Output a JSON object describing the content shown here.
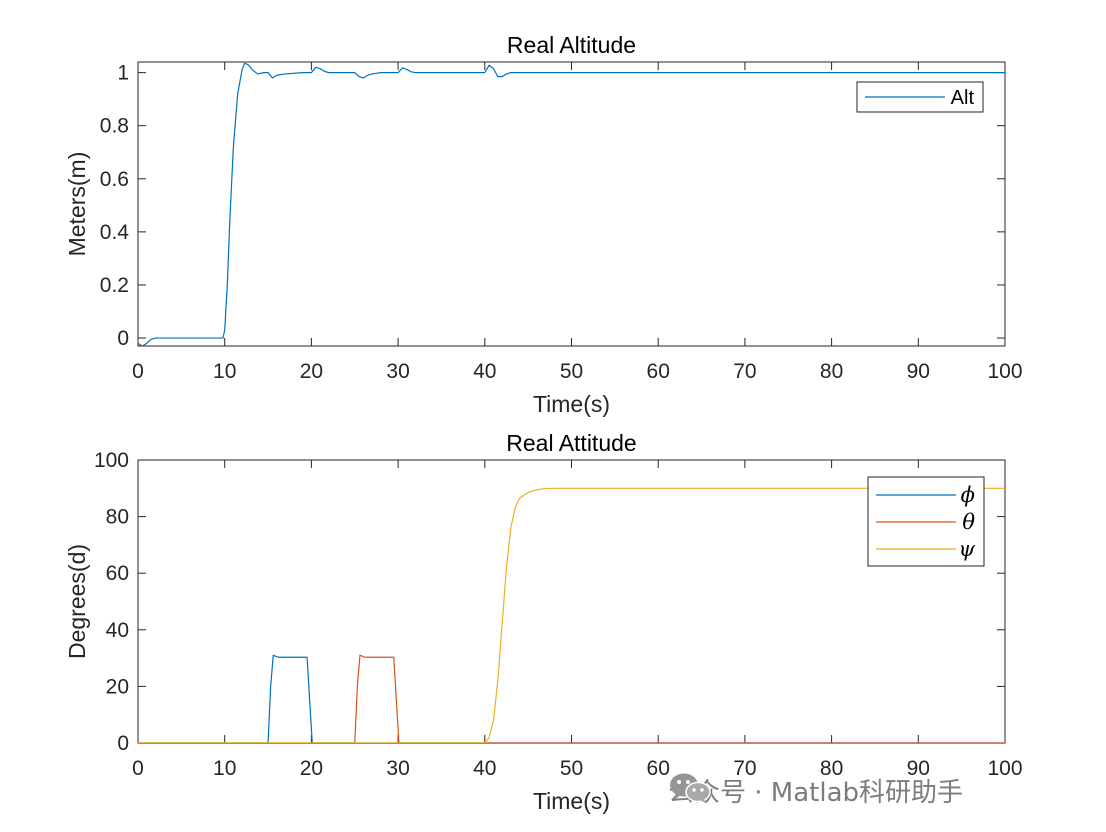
{
  "chart_data": [
    {
      "type": "line",
      "title": "Real Altitude",
      "xlabel": "Time(s)",
      "ylabel": "Meters(m)",
      "xlim": [
        0,
        100
      ],
      "ylim": [
        -0.03,
        1.04
      ],
      "xticks": [
        0,
        10,
        20,
        30,
        40,
        50,
        60,
        70,
        80,
        90,
        100
      ],
      "yticks": [
        0,
        0.2,
        0.4,
        0.6,
        0.8,
        1
      ],
      "ytick_labels": [
        "0",
        "0.2",
        "0.4",
        "0.6",
        "0.8",
        "1"
      ],
      "legend_position": "top-right",
      "grid": false,
      "series": [
        {
          "name": "Alt",
          "color": "#0072BD",
          "x": [
            0,
            0.5,
            1,
            1.5,
            2,
            3,
            5,
            8,
            9.8,
            10,
            10.3,
            10.6,
            11,
            11.5,
            12,
            12.3,
            12.7,
            13.2,
            13.8,
            14.5,
            15,
            15.5,
            16,
            17,
            19,
            20,
            20.5,
            21,
            21.5,
            22,
            23,
            24,
            25,
            25.5,
            26,
            26.5,
            27,
            28,
            29,
            30,
            30.5,
            31,
            31.5,
            32,
            33,
            35,
            38,
            40,
            40.5,
            41,
            41.5,
            42,
            42.5,
            43,
            44,
            46,
            50,
            60,
            70,
            80,
            90,
            100
          ],
          "y": [
            -0.02,
            -0.03,
            -0.02,
            -0.005,
            0,
            0,
            0,
            0,
            0,
            0.03,
            0.2,
            0.45,
            0.72,
            0.92,
            1.01,
            1.035,
            1.03,
            1.01,
            0.995,
            1.0,
            1.0,
            0.98,
            0.99,
            0.995,
            1.0,
            1.0,
            1.02,
            1.015,
            1.005,
            1.0,
            1.0,
            1.0,
            1.0,
            0.985,
            0.98,
            0.99,
            0.995,
            1.0,
            1.0,
            1.0,
            1.018,
            1.012,
            1.003,
            1.0,
            1.0,
            1.0,
            1.0,
            1.0,
            1.028,
            1.015,
            0.985,
            0.985,
            0.995,
            1.0,
            1.0,
            1.0,
            1.0,
            1.0,
            1.0,
            1.0,
            1.0,
            1.0
          ]
        }
      ]
    },
    {
      "type": "line",
      "title": "Real Attitude",
      "xlabel": "Time(s)",
      "ylabel": "Degrees(d)",
      "xlim": [
        0,
        100
      ],
      "ylim": [
        0,
        100
      ],
      "xticks": [
        0,
        10,
        20,
        30,
        40,
        50,
        60,
        70,
        80,
        90,
        100
      ],
      "yticks": [
        0,
        20,
        40,
        60,
        80,
        100
      ],
      "ytick_labels": [
        "0",
        "20",
        "40",
        "60",
        "80",
        "100"
      ],
      "legend_position": "top-right",
      "grid": false,
      "series": [
        {
          "name": "ϕ",
          "color": "#0072BD",
          "x": [
            0,
            15,
            15.3,
            15.6,
            16.2,
            19.5,
            19.8,
            20.1,
            100
          ],
          "y": [
            0,
            0,
            20,
            31,
            30.3,
            30.3,
            15,
            0,
            0
          ]
        },
        {
          "name": "θ",
          "color": "#D95319",
          "x": [
            0,
            25,
            25.3,
            25.6,
            26.2,
            29.5,
            29.8,
            30.1,
            100
          ],
          "y": [
            0,
            0,
            20,
            31,
            30.3,
            30.3,
            15,
            0,
            0
          ]
        },
        {
          "name": "ψ",
          "color": "#EDB120",
          "x": [
            0,
            40,
            40.5,
            41,
            41.5,
            42,
            42.5,
            43,
            43.5,
            44,
            45,
            46,
            47,
            48,
            100
          ],
          "y": [
            0,
            0,
            2,
            8,
            22,
            42,
            62,
            76,
            83,
            86.5,
            88.5,
            89.5,
            89.9,
            90,
            90
          ]
        }
      ]
    }
  ],
  "watermark": {
    "icon": "wechat-icon",
    "text": "公众号 · Matlab科研助手"
  }
}
